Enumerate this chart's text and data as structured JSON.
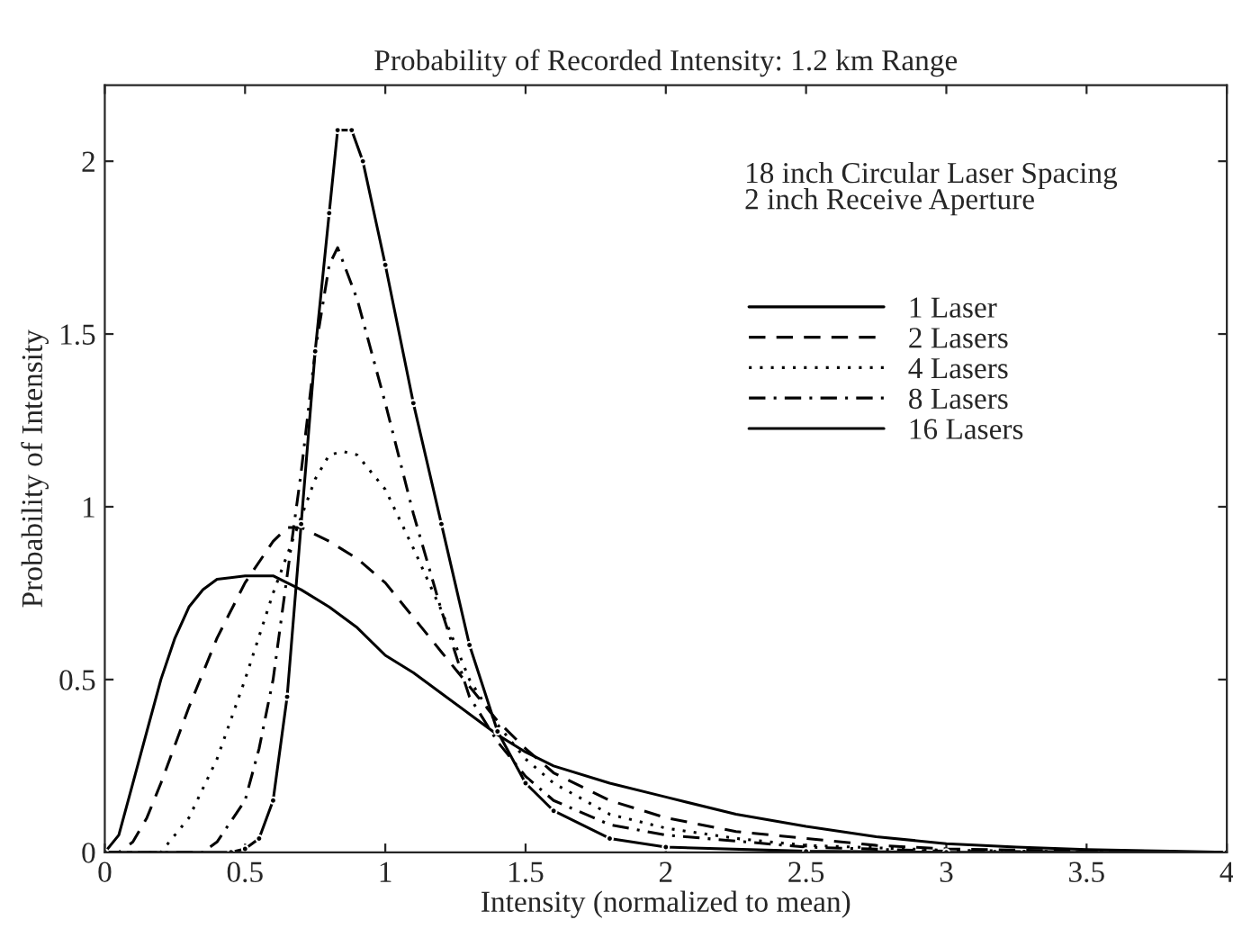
{
  "chart_data": {
    "type": "line",
    "title": "Probability of Recorded Intensity: 1.2 km Range",
    "xlabel": "Intensity (normalized to mean)",
    "ylabel": "Probability of Intensity",
    "annotations": [
      "18 inch Circular Laser Spacing\n2 inch Receive Aperture"
    ],
    "xlim": [
      0,
      4
    ],
    "xticks": [
      0,
      0.5,
      1,
      1.5,
      2,
      2.5,
      3,
      3.5,
      4
    ],
    "ylim": [
      0,
      2.22
    ],
    "yticks": [
      0,
      0.5,
      1,
      1.5,
      2
    ],
    "grid": false,
    "legend": "top right",
    "series": [
      {
        "name": "1 Laser",
        "color": "#000000",
        "line_style": "solid",
        "marker": "none",
        "x": [
          0,
          0.05,
          0.1,
          0.15,
          0.2,
          0.25,
          0.3,
          0.35,
          0.4,
          0.5,
          0.6,
          0.7,
          0.8,
          0.9,
          1.0,
          1.1,
          1.2,
          1.3,
          1.4,
          1.5,
          1.6,
          1.8,
          2.0,
          2.25,
          2.5,
          2.75,
          3.0,
          3.25,
          3.5,
          3.8,
          4.0
        ],
        "values": [
          0,
          0.05,
          0.2,
          0.35,
          0.5,
          0.62,
          0.71,
          0.76,
          0.79,
          0.8,
          0.8,
          0.76,
          0.71,
          0.65,
          0.57,
          0.52,
          0.46,
          0.4,
          0.34,
          0.29,
          0.25,
          0.2,
          0.16,
          0.11,
          0.075,
          0.045,
          0.025,
          0.015,
          0.008,
          0.003,
          0
        ]
      },
      {
        "name": "2 Lasers",
        "color": "#000000",
        "line_style": "dashed",
        "marker": "none",
        "x": [
          0,
          0.05,
          0.1,
          0.15,
          0.2,
          0.3,
          0.4,
          0.5,
          0.6,
          0.65,
          0.7,
          0.8,
          0.9,
          1.0,
          1.1,
          1.2,
          1.3,
          1.4,
          1.5,
          1.6,
          1.8,
          2.0,
          2.25,
          2.5,
          2.75,
          3.0,
          3.5,
          4.0
        ],
        "values": [
          0,
          0,
          0.03,
          0.1,
          0.2,
          0.42,
          0.62,
          0.78,
          0.9,
          0.94,
          0.94,
          0.9,
          0.85,
          0.78,
          0.68,
          0.58,
          0.48,
          0.38,
          0.3,
          0.23,
          0.15,
          0.1,
          0.06,
          0.04,
          0.02,
          0.01,
          0.003,
          0
        ]
      },
      {
        "name": "4 Lasers",
        "color": "#000000",
        "line_style": "dotted",
        "marker": "none",
        "x": [
          0,
          0.2,
          0.25,
          0.3,
          0.4,
          0.5,
          0.6,
          0.7,
          0.75,
          0.8,
          0.85,
          0.9,
          1.0,
          1.1,
          1.2,
          1.3,
          1.4,
          1.5,
          1.6,
          1.8,
          2.0,
          2.25,
          2.5,
          3.0,
          3.5,
          4.0
        ],
        "values": [
          0,
          0,
          0.05,
          0.1,
          0.27,
          0.5,
          0.75,
          0.97,
          1.08,
          1.15,
          1.16,
          1.15,
          1.05,
          0.88,
          0.7,
          0.5,
          0.37,
          0.27,
          0.2,
          0.11,
          0.07,
          0.04,
          0.02,
          0.006,
          0.001,
          0
        ]
      },
      {
        "name": "8 Lasers",
        "color": "#000000",
        "line_style": "dashdot",
        "marker": "none",
        "x": [
          0,
          0.35,
          0.4,
          0.5,
          0.55,
          0.6,
          0.65,
          0.7,
          0.75,
          0.8,
          0.83,
          0.9,
          1.0,
          1.1,
          1.2,
          1.3,
          1.4,
          1.5,
          1.6,
          1.8,
          2.0,
          2.5,
          3.0,
          4.0
        ],
        "values": [
          0,
          0,
          0.03,
          0.15,
          0.3,
          0.5,
          0.8,
          1.1,
          1.45,
          1.7,
          1.75,
          1.6,
          1.3,
          0.98,
          0.7,
          0.45,
          0.32,
          0.22,
          0.15,
          0.08,
          0.05,
          0.015,
          0.003,
          0
        ]
      },
      {
        "name": "16 Lasers",
        "color": "#000000",
        "line_style": "solid",
        "marker": "circle",
        "x": [
          0,
          0.45,
          0.5,
          0.55,
          0.6,
          0.65,
          0.7,
          0.75,
          0.8,
          0.83,
          0.88,
          0.92,
          1.0,
          1.1,
          1.2,
          1.3,
          1.4,
          1.5,
          1.6,
          1.8,
          2.0,
          2.5,
          3.0,
          4.0
        ],
        "values": [
          0,
          0,
          0.01,
          0.04,
          0.15,
          0.45,
          0.95,
          1.45,
          1.85,
          2.09,
          2.09,
          2.0,
          1.7,
          1.3,
          0.95,
          0.6,
          0.35,
          0.2,
          0.12,
          0.04,
          0.015,
          0.003,
          0,
          0
        ]
      }
    ]
  }
}
